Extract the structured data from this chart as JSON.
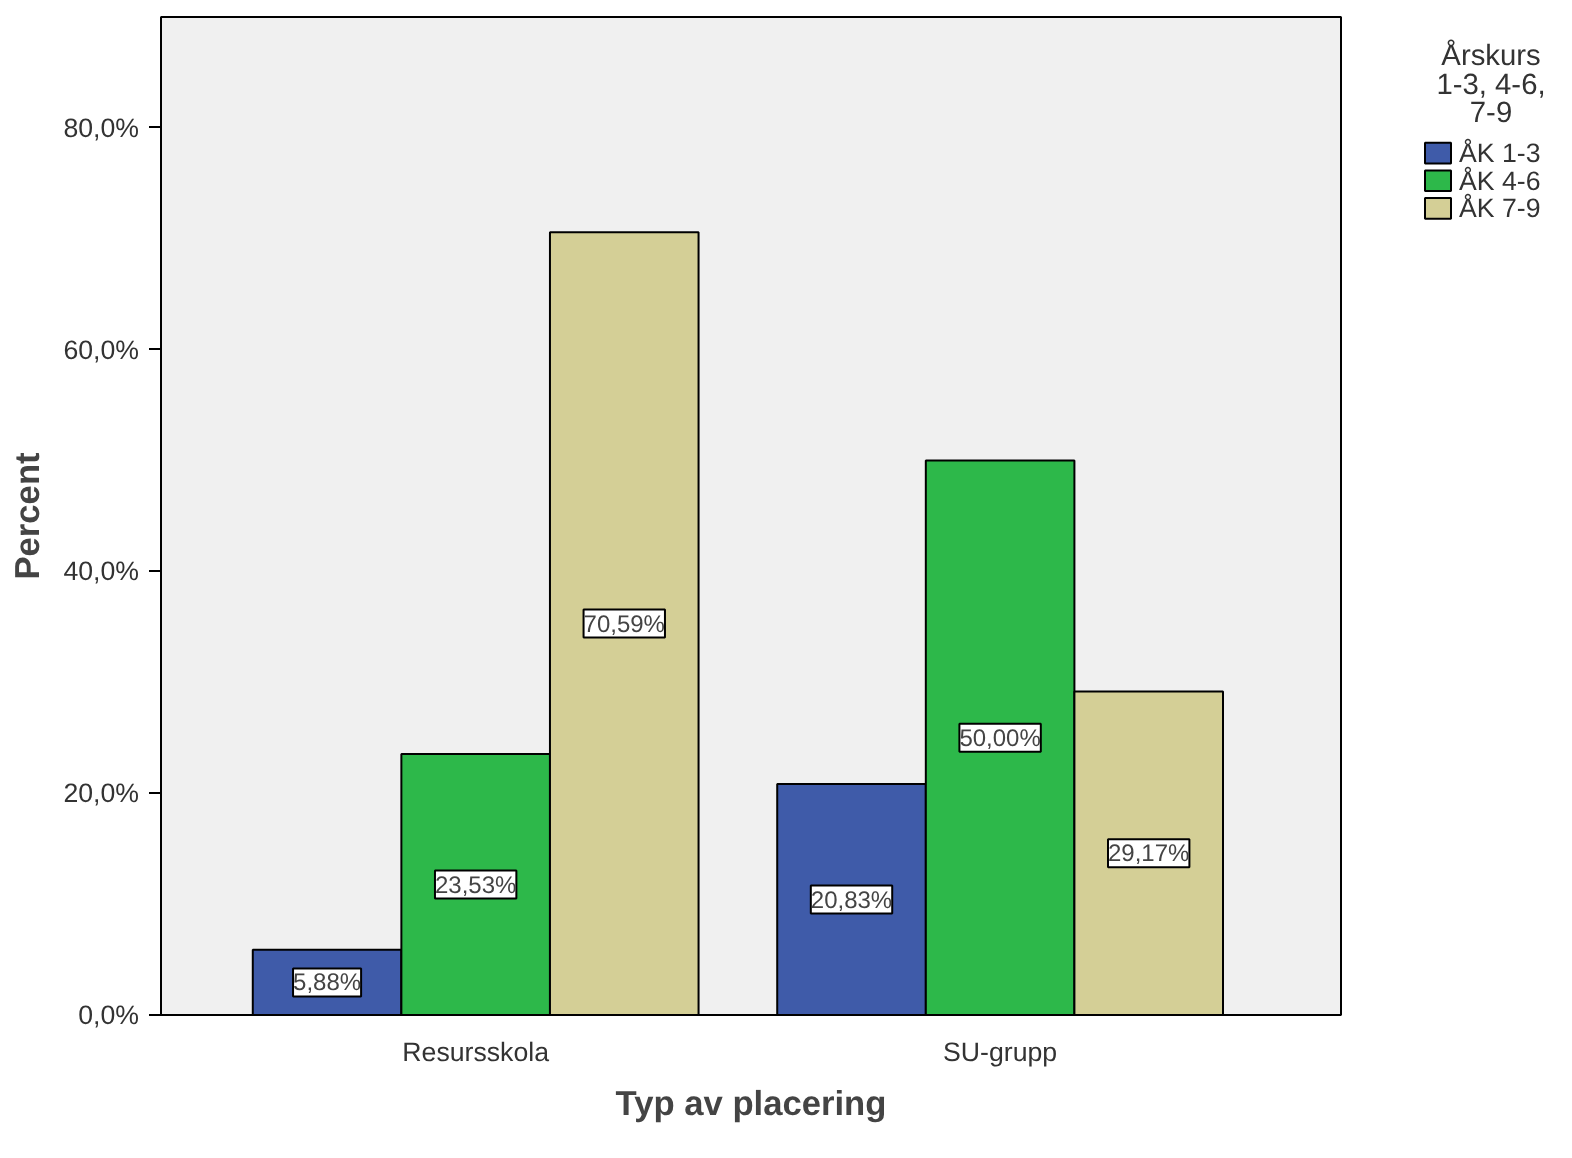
{
  "chart_data": {
    "type": "bar",
    "xlabel": "Typ av placering",
    "ylabel": "Percent",
    "legend_title": "Årskurs 1-3, 4-6, 7-9",
    "categories": [
      "Resursskola",
      "SU-grupp"
    ],
    "series": [
      {
        "name": "ÅK 1-3",
        "color": "#3f5ba9",
        "values": [
          5.88,
          20.83
        ],
        "value_labels": [
          "5,88%",
          "20,83%"
        ]
      },
      {
        "name": "ÅK 4-6",
        "color": "#2db84a",
        "values": [
          23.53,
          50.0
        ],
        "value_labels": [
          "23,53%",
          "50,00%"
        ]
      },
      {
        "name": "ÅK 7-9",
        "color": "#d4cf96",
        "values": [
          70.59,
          29.17
        ],
        "value_labels": [
          "70,59%",
          "29,17%"
        ]
      }
    ],
    "ylim": [
      0,
      90
    ],
    "yticks": [
      {
        "value": 0,
        "label": "0,0%"
      },
      {
        "value": 20,
        "label": "20,0%"
      },
      {
        "value": 40,
        "label": "40,0%"
      },
      {
        "value": 60,
        "label": "60,0%"
      },
      {
        "value": 80,
        "label": "80,0%"
      }
    ],
    "grid": false,
    "legend": "top right"
  }
}
